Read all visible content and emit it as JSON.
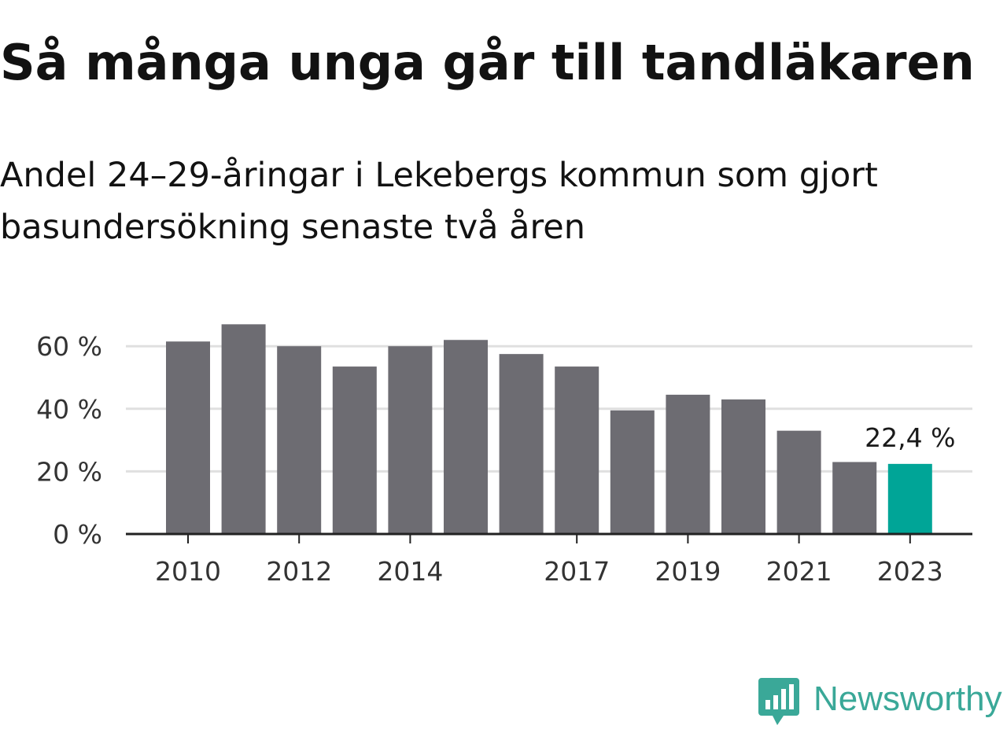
{
  "title": "Så många unga går till tandläkaren",
  "subtitle": "Andel 24–29-åringar i Lekebergs kommun som gjort basundersökning senaste två åren",
  "brand": "Newsworthy",
  "colors": {
    "bar": "#6d6c72",
    "highlight": "#00a597",
    "grid": "#e0e0e0",
    "axis": "#222222",
    "brand": "#3aa898"
  },
  "chart_data": {
    "type": "bar",
    "categories": [
      "2010",
      "2011",
      "2012",
      "2013",
      "2014",
      "2015",
      "2016",
      "2017",
      "2018",
      "2019",
      "2020",
      "2021",
      "2022",
      "2023"
    ],
    "values": [
      61.5,
      67,
      60,
      53.5,
      60,
      62,
      57.5,
      53.5,
      39.5,
      44.5,
      43,
      33,
      23,
      22.4
    ],
    "x_tick_labels": [
      "2010",
      "2012",
      "2014",
      "2017",
      "2019",
      "2021",
      "2023"
    ],
    "y_ticks": [
      0,
      20,
      40,
      60
    ],
    "y_tick_labels": [
      "0 %",
      "20 %",
      "40 %",
      "60 %"
    ],
    "ylim": [
      0,
      70
    ],
    "highlight_category": "2023",
    "annotation": {
      "category": "2023",
      "text": "22,4 %"
    },
    "grid": true,
    "legend": "none",
    "xlabel": "",
    "ylabel": ""
  }
}
